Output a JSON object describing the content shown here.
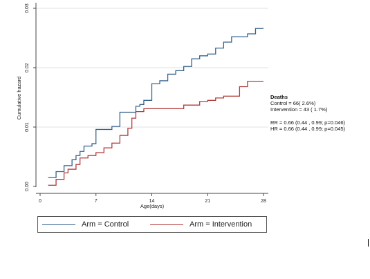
{
  "chart_data": {
    "type": "line",
    "step": true,
    "xlabel": "Age(days)",
    "ylabel": "Cumulative hazard",
    "xlim": [
      0,
      28.5
    ],
    "ylim": [
      0,
      0.03
    ],
    "x_ticks": [
      {
        "value": 0,
        "label": "0"
      },
      {
        "value": 7,
        "label": "7"
      },
      {
        "value": 14,
        "label": "14"
      },
      {
        "value": 21,
        "label": "21"
      },
      {
        "value": 28,
        "label": "28"
      }
    ],
    "y_ticks": [
      {
        "value": 0,
        "label": "0.00"
      },
      {
        "value": 0.01,
        "label": "0.01"
      },
      {
        "value": 0.02,
        "label": "0.02"
      },
      {
        "value": 0.03,
        "label": "0.03"
      }
    ],
    "series": [
      {
        "name": "Arm = Control",
        "color": "#34628c",
        "points": [
          [
            1,
            0.0015
          ],
          [
            2,
            0.0025
          ],
          [
            3,
            0.0035
          ],
          [
            4,
            0.0045
          ],
          [
            4.5,
            0.0052
          ],
          [
            5,
            0.0059
          ],
          [
            5.5,
            0.0068
          ],
          [
            6.5,
            0.0072
          ],
          [
            7,
            0.0096
          ],
          [
            9,
            0.0101
          ],
          [
            10,
            0.0125
          ],
          [
            12,
            0.0135
          ],
          [
            12.5,
            0.0138
          ],
          [
            13,
            0.0145
          ],
          [
            14,
            0.0173
          ],
          [
            15,
            0.0178
          ],
          [
            16,
            0.0189
          ],
          [
            17,
            0.0195
          ],
          [
            18,
            0.0202
          ],
          [
            19,
            0.0215
          ],
          [
            20,
            0.022
          ],
          [
            21,
            0.0223
          ],
          [
            22,
            0.0233
          ],
          [
            23,
            0.0243
          ],
          [
            24,
            0.0252
          ],
          [
            26,
            0.0257
          ],
          [
            27,
            0.0266
          ],
          [
            28,
            0.0266
          ]
        ]
      },
      {
        "name": "Arm = Intervention",
        "color": "#b23a3a",
        "points": [
          [
            1,
            0.0002
          ],
          [
            2,
            0.0012
          ],
          [
            3,
            0.0023
          ],
          [
            3.5,
            0.0029
          ],
          [
            4.5,
            0.0037
          ],
          [
            5,
            0.0048
          ],
          [
            6,
            0.0052
          ],
          [
            7,
            0.0057
          ],
          [
            8,
            0.0065
          ],
          [
            9,
            0.0073
          ],
          [
            10,
            0.0086
          ],
          [
            11,
            0.0098
          ],
          [
            11.5,
            0.0115
          ],
          [
            12,
            0.0126
          ],
          [
            13,
            0.0131
          ],
          [
            18,
            0.0137
          ],
          [
            20,
            0.0143
          ],
          [
            21,
            0.0145
          ],
          [
            22,
            0.0149
          ],
          [
            23,
            0.0152
          ],
          [
            25,
            0.0168
          ],
          [
            26,
            0.0177
          ],
          [
            28,
            0.0177
          ]
        ]
      }
    ]
  },
  "annotation": {
    "title": "Deaths",
    "control": "Control = 66( 2.6%)",
    "intervention": "Intervention = 43 ( 1.7%)",
    "rr": "RR = 0.66 (0.44 , 0.99; p=0.046)",
    "hr": "HR = 0.66 (0.44 , 0.99; p=0.045)"
  },
  "legend": {
    "control": "Arm = Control",
    "intervention": "Arm = Intervention"
  }
}
